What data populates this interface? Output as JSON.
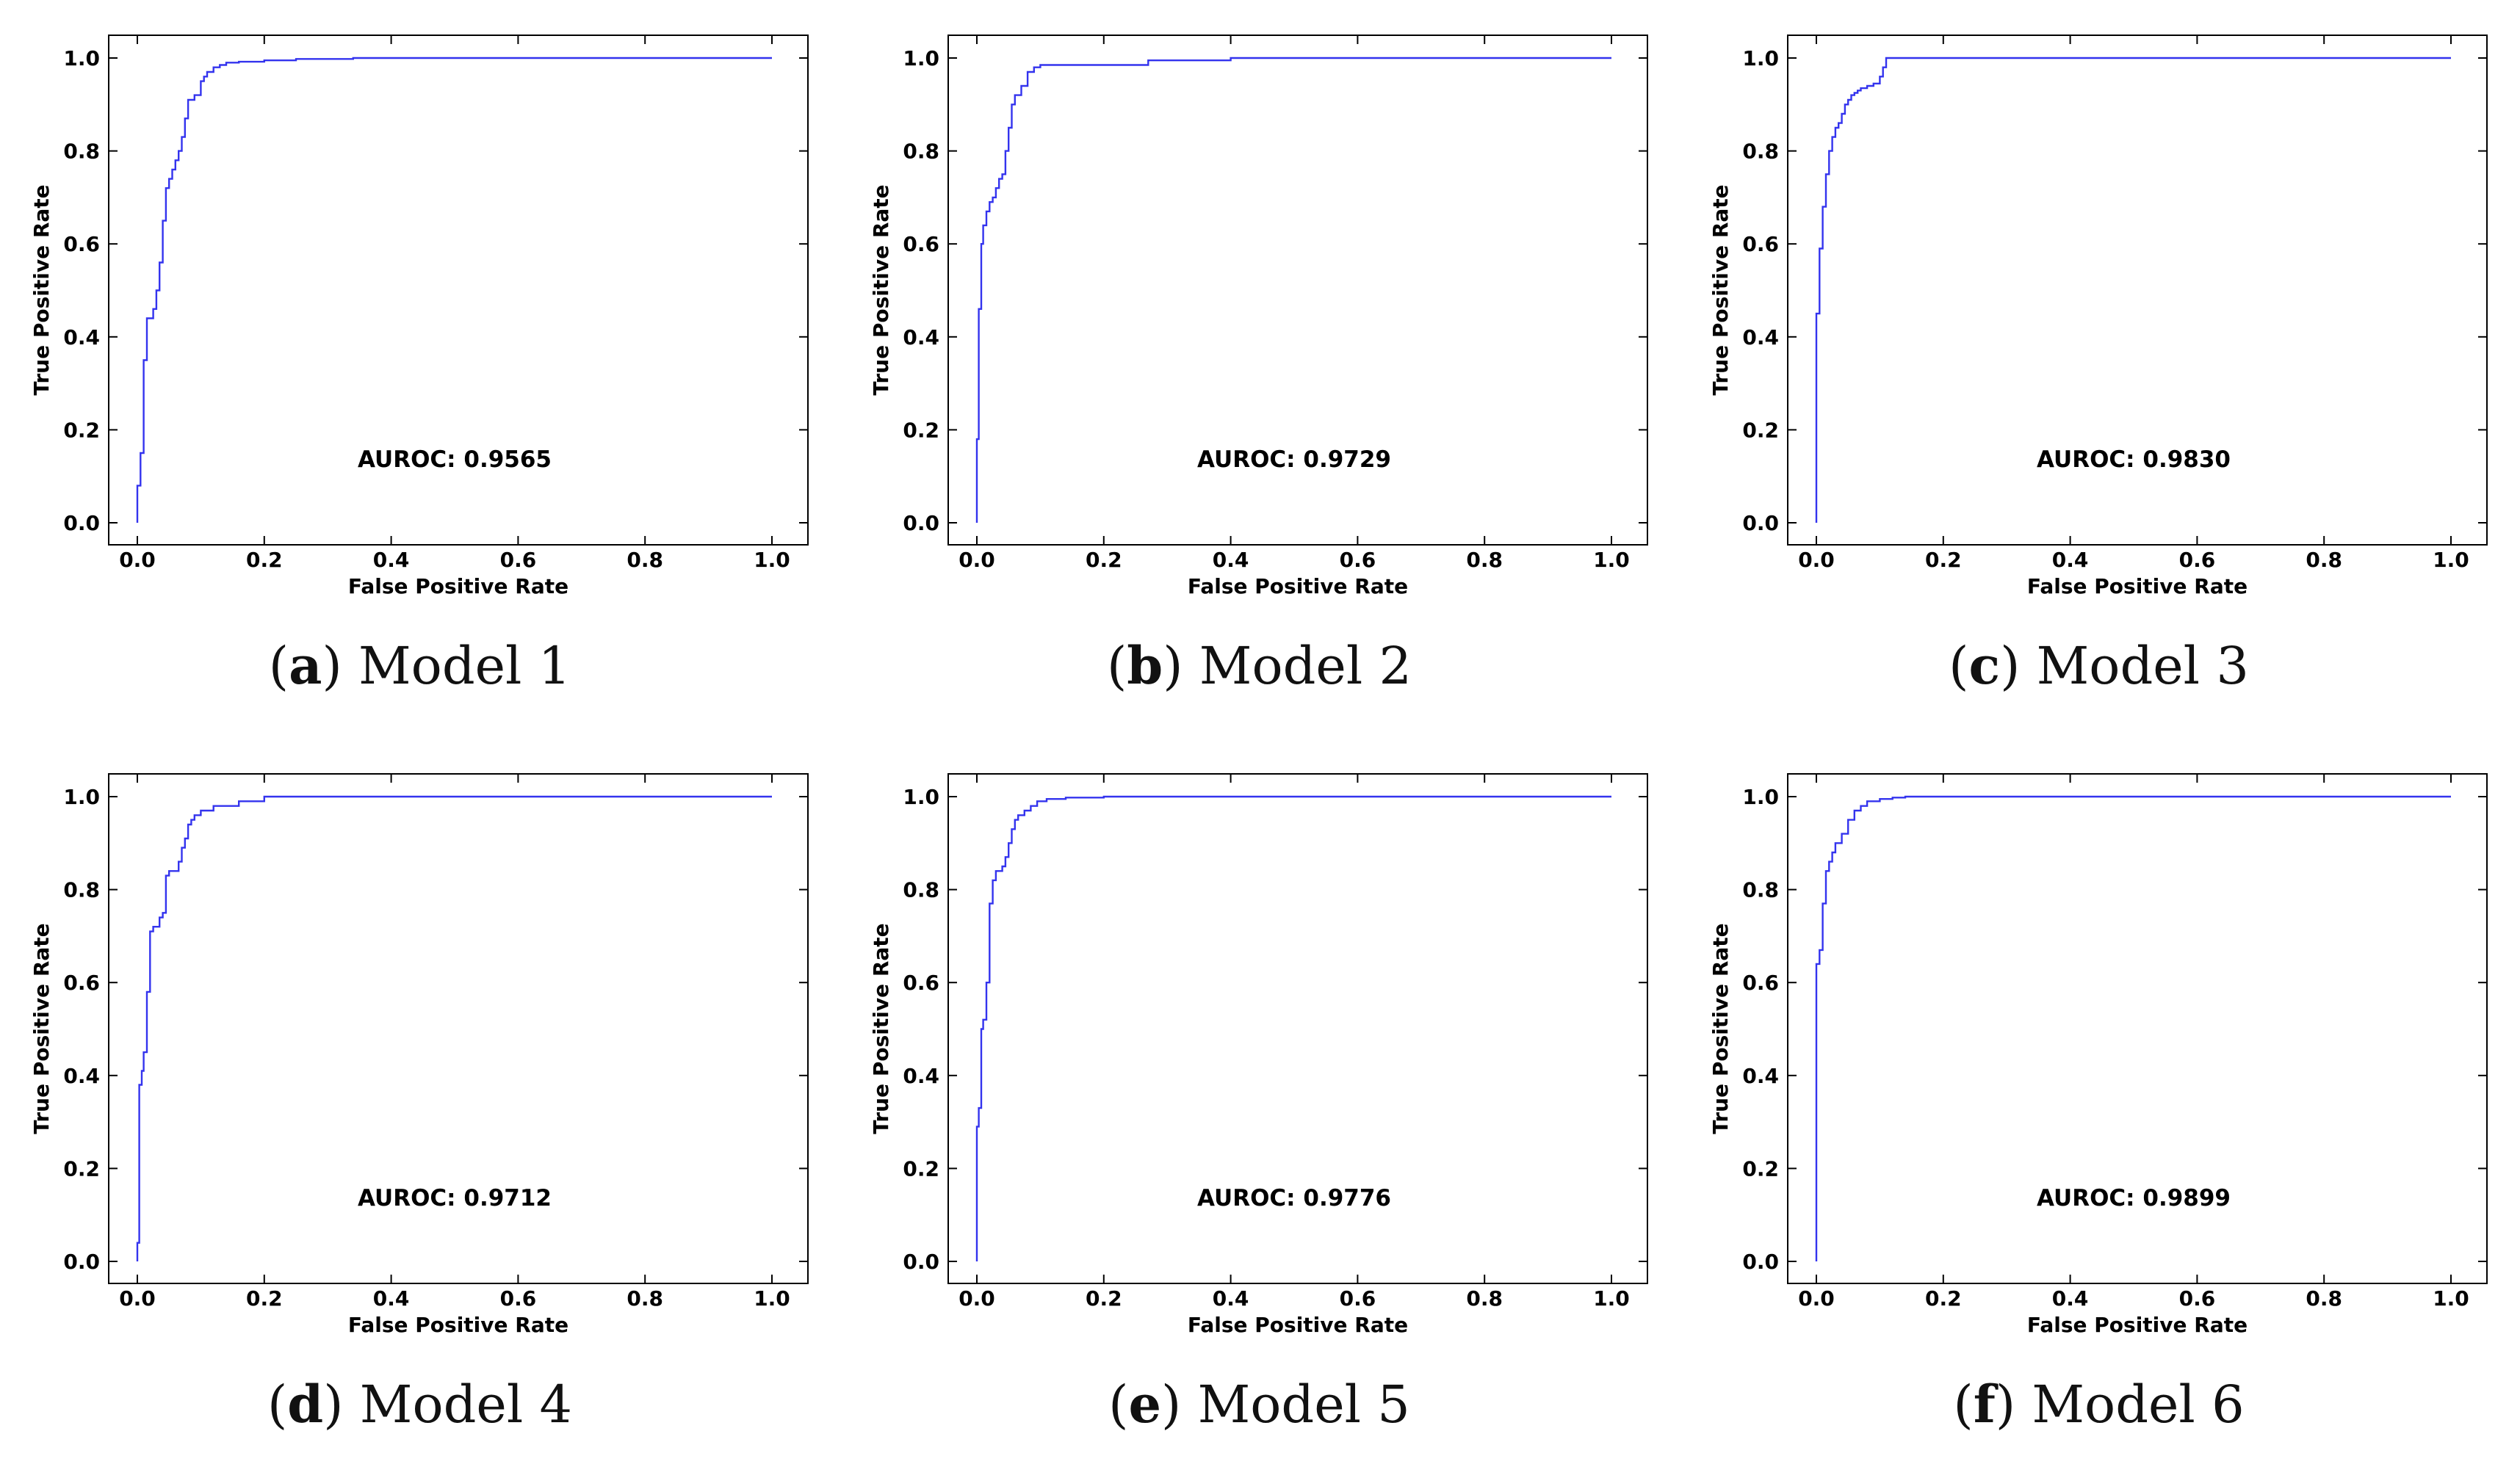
{
  "chart_data": [
    {
      "type": "line",
      "title": "",
      "caption_letter": "a",
      "caption_text": "Model 1",
      "xlabel": "False Positive Rate",
      "ylabel": "True Positive Rate",
      "xlim": [
        0,
        1
      ],
      "ylim": [
        0,
        1
      ],
      "xticks": [
        "0.0",
        "0.2",
        "0.4",
        "0.6",
        "0.8",
        "1.0"
      ],
      "yticks": [
        "0.0",
        "0.2",
        "0.4",
        "0.6",
        "0.8",
        "1.0"
      ],
      "annotation": "AUROC: 0.9565",
      "series": [
        {
          "name": "ROC",
          "color": "#3333ee",
          "x": [
            0.0,
            0.0,
            0.005,
            0.005,
            0.01,
            0.01,
            0.015,
            0.015,
            0.025,
            0.025,
            0.03,
            0.03,
            0.035,
            0.035,
            0.04,
            0.04,
            0.045,
            0.045,
            0.05,
            0.05,
            0.055,
            0.055,
            0.06,
            0.06,
            0.065,
            0.065,
            0.07,
            0.07,
            0.075,
            0.075,
            0.08,
            0.08,
            0.09,
            0.09,
            0.1,
            0.1,
            0.105,
            0.105,
            0.11,
            0.11,
            0.12,
            0.12,
            0.13,
            0.13,
            0.14,
            0.14,
            0.16,
            0.16,
            0.2,
            0.2,
            0.25,
            0.25,
            0.34,
            0.34,
            1.0
          ],
          "y": [
            0.0,
            0.08,
            0.08,
            0.15,
            0.15,
            0.35,
            0.35,
            0.44,
            0.44,
            0.46,
            0.46,
            0.5,
            0.5,
            0.56,
            0.56,
            0.65,
            0.65,
            0.72,
            0.72,
            0.74,
            0.74,
            0.76,
            0.76,
            0.78,
            0.78,
            0.8,
            0.8,
            0.83,
            0.83,
            0.87,
            0.87,
            0.91,
            0.91,
            0.92,
            0.92,
            0.95,
            0.95,
            0.96,
            0.96,
            0.97,
            0.97,
            0.98,
            0.98,
            0.985,
            0.985,
            0.99,
            0.99,
            0.992,
            0.992,
            0.995,
            0.995,
            0.998,
            0.998,
            1.0,
            1.0
          ]
        }
      ]
    },
    {
      "type": "line",
      "title": "",
      "caption_letter": "b",
      "caption_text": "Model 2",
      "xlabel": "False Positive Rate",
      "ylabel": "True Positive Rate",
      "xlim": [
        0,
        1
      ],
      "ylim": [
        0,
        1
      ],
      "xticks": [
        "0.0",
        "0.2",
        "0.4",
        "0.6",
        "0.8",
        "1.0"
      ],
      "yticks": [
        "0.0",
        "0.2",
        "0.4",
        "0.6",
        "0.8",
        "1.0"
      ],
      "annotation": "AUROC: 0.9729",
      "series": [
        {
          "name": "ROC",
          "color": "#3333ee",
          "x": [
            0.0,
            0.0,
            0.003,
            0.003,
            0.007,
            0.007,
            0.01,
            0.01,
            0.015,
            0.015,
            0.02,
            0.02,
            0.025,
            0.025,
            0.03,
            0.03,
            0.035,
            0.035,
            0.04,
            0.04,
            0.045,
            0.045,
            0.05,
            0.05,
            0.055,
            0.055,
            0.06,
            0.06,
            0.07,
            0.07,
            0.08,
            0.08,
            0.09,
            0.09,
            0.1,
            0.1,
            0.27,
            0.27,
            0.4,
            0.4,
            1.0
          ],
          "y": [
            0.0,
            0.18,
            0.18,
            0.46,
            0.46,
            0.6,
            0.6,
            0.64,
            0.64,
            0.67,
            0.67,
            0.69,
            0.69,
            0.7,
            0.7,
            0.72,
            0.72,
            0.74,
            0.74,
            0.75,
            0.75,
            0.8,
            0.8,
            0.85,
            0.85,
            0.9,
            0.9,
            0.92,
            0.92,
            0.94,
            0.94,
            0.97,
            0.97,
            0.98,
            0.98,
            0.985,
            0.985,
            0.995,
            0.995,
            1.0,
            1.0
          ]
        }
      ]
    },
    {
      "type": "line",
      "title": "",
      "caption_letter": "c",
      "caption_text": "Model 3",
      "xlabel": "False Positive Rate",
      "ylabel": "True Positive Rate",
      "xlim": [
        0,
        1
      ],
      "ylim": [
        0,
        1
      ],
      "xticks": [
        "0.0",
        "0.2",
        "0.4",
        "0.6",
        "0.8",
        "1.0"
      ],
      "yticks": [
        "0.0",
        "0.2",
        "0.4",
        "0.6",
        "0.8",
        "1.0"
      ],
      "annotation": "AUROC: 0.9830",
      "series": [
        {
          "name": "ROC",
          "color": "#3333ee",
          "x": [
            0.0,
            0.0,
            0.005,
            0.005,
            0.01,
            0.01,
            0.015,
            0.015,
            0.02,
            0.02,
            0.025,
            0.025,
            0.03,
            0.03,
            0.035,
            0.035,
            0.04,
            0.04,
            0.045,
            0.045,
            0.05,
            0.05,
            0.055,
            0.055,
            0.06,
            0.06,
            0.065,
            0.065,
            0.07,
            0.07,
            0.08,
            0.08,
            0.09,
            0.09,
            0.1,
            0.1,
            0.105,
            0.105,
            0.11,
            0.11,
            1.0
          ],
          "y": [
            0.0,
            0.45,
            0.45,
            0.59,
            0.59,
            0.68,
            0.68,
            0.75,
            0.75,
            0.8,
            0.8,
            0.83,
            0.83,
            0.85,
            0.85,
            0.86,
            0.86,
            0.88,
            0.88,
            0.9,
            0.9,
            0.91,
            0.91,
            0.92,
            0.92,
            0.925,
            0.925,
            0.93,
            0.93,
            0.935,
            0.935,
            0.94,
            0.94,
            0.945,
            0.945,
            0.96,
            0.96,
            0.98,
            0.98,
            1.0,
            1.0
          ]
        }
      ]
    },
    {
      "type": "line",
      "title": "",
      "caption_letter": "d",
      "caption_text": "Model 4",
      "xlabel": "False Positive Rate",
      "ylabel": "True Positive Rate",
      "xlim": [
        0,
        1
      ],
      "ylim": [
        0,
        1
      ],
      "xticks": [
        "0.0",
        "0.2",
        "0.4",
        "0.6",
        "0.8",
        "1.0"
      ],
      "yticks": [
        "0.0",
        "0.2",
        "0.4",
        "0.6",
        "0.8",
        "1.0"
      ],
      "annotation": "AUROC: 0.9712",
      "series": [
        {
          "name": "ROC",
          "color": "#3333ee",
          "x": [
            0.0,
            0.0,
            0.003,
            0.003,
            0.007,
            0.007,
            0.01,
            0.01,
            0.015,
            0.015,
            0.02,
            0.02,
            0.025,
            0.025,
            0.035,
            0.035,
            0.04,
            0.04,
            0.045,
            0.045,
            0.05,
            0.05,
            0.065,
            0.065,
            0.07,
            0.07,
            0.075,
            0.075,
            0.08,
            0.08,
            0.085,
            0.085,
            0.09,
            0.09,
            0.1,
            0.1,
            0.12,
            0.12,
            0.16,
            0.16,
            0.2,
            0.2,
            1.0
          ],
          "y": [
            0.0,
            0.04,
            0.04,
            0.38,
            0.38,
            0.41,
            0.41,
            0.45,
            0.45,
            0.58,
            0.58,
            0.71,
            0.71,
            0.72,
            0.72,
            0.74,
            0.74,
            0.75,
            0.75,
            0.83,
            0.83,
            0.84,
            0.84,
            0.86,
            0.86,
            0.89,
            0.89,
            0.91,
            0.91,
            0.94,
            0.94,
            0.95,
            0.95,
            0.96,
            0.96,
            0.97,
            0.97,
            0.98,
            0.98,
            0.99,
            0.99,
            1.0,
            1.0
          ]
        }
      ]
    },
    {
      "type": "line",
      "title": "",
      "caption_letter": "e",
      "caption_text": "Model 5",
      "xlabel": "False Positive Rate",
      "ylabel": "True Positive Rate",
      "xlim": [
        0,
        1
      ],
      "ylim": [
        0,
        1
      ],
      "xticks": [
        "0.0",
        "0.2",
        "0.4",
        "0.6",
        "0.8",
        "1.0"
      ],
      "yticks": [
        "0.0",
        "0.2",
        "0.4",
        "0.6",
        "0.8",
        "1.0"
      ],
      "annotation": "AUROC: 0.9776",
      "series": [
        {
          "name": "ROC",
          "color": "#3333ee",
          "x": [
            0.0,
            0.0,
            0.003,
            0.003,
            0.007,
            0.007,
            0.01,
            0.01,
            0.015,
            0.015,
            0.02,
            0.02,
            0.025,
            0.025,
            0.03,
            0.03,
            0.04,
            0.04,
            0.045,
            0.045,
            0.05,
            0.05,
            0.055,
            0.055,
            0.06,
            0.06,
            0.065,
            0.065,
            0.075,
            0.075,
            0.085,
            0.085,
            0.095,
            0.095,
            0.11,
            0.11,
            0.14,
            0.14,
            0.2,
            0.2,
            1.0
          ],
          "y": [
            0.0,
            0.29,
            0.29,
            0.33,
            0.33,
            0.5,
            0.5,
            0.52,
            0.52,
            0.6,
            0.6,
            0.77,
            0.77,
            0.82,
            0.82,
            0.84,
            0.84,
            0.85,
            0.85,
            0.87,
            0.87,
            0.9,
            0.9,
            0.93,
            0.93,
            0.95,
            0.95,
            0.96,
            0.96,
            0.97,
            0.97,
            0.98,
            0.98,
            0.99,
            0.99,
            0.995,
            0.995,
            0.998,
            0.998,
            1.0,
            1.0
          ]
        }
      ]
    },
    {
      "type": "line",
      "title": "",
      "caption_letter": "f",
      "caption_text": "Model 6",
      "xlabel": "False Positive Rate",
      "ylabel": "True Positive Rate",
      "xlim": [
        0,
        1
      ],
      "ylim": [
        0,
        1
      ],
      "xticks": [
        "0.0",
        "0.2",
        "0.4",
        "0.6",
        "0.8",
        "1.0"
      ],
      "yticks": [
        "0.0",
        "0.2",
        "0.4",
        "0.6",
        "0.8",
        "1.0"
      ],
      "annotation": "AUROC: 0.9899",
      "series": [
        {
          "name": "ROC",
          "color": "#3333ee",
          "x": [
            0.0,
            0.0,
            0.005,
            0.005,
            0.01,
            0.01,
            0.015,
            0.015,
            0.02,
            0.02,
            0.025,
            0.025,
            0.03,
            0.03,
            0.04,
            0.04,
            0.05,
            0.05,
            0.06,
            0.06,
            0.07,
            0.07,
            0.08,
            0.08,
            0.1,
            0.1,
            0.12,
            0.12,
            0.14,
            0.14,
            1.0
          ],
          "y": [
            0.0,
            0.64,
            0.64,
            0.67,
            0.67,
            0.77,
            0.77,
            0.84,
            0.84,
            0.86,
            0.86,
            0.88,
            0.88,
            0.9,
            0.9,
            0.92,
            0.92,
            0.95,
            0.95,
            0.97,
            0.97,
            0.98,
            0.98,
            0.99,
            0.99,
            0.995,
            0.995,
            0.998,
            0.998,
            1.0,
            1.0
          ]
        }
      ]
    }
  ]
}
